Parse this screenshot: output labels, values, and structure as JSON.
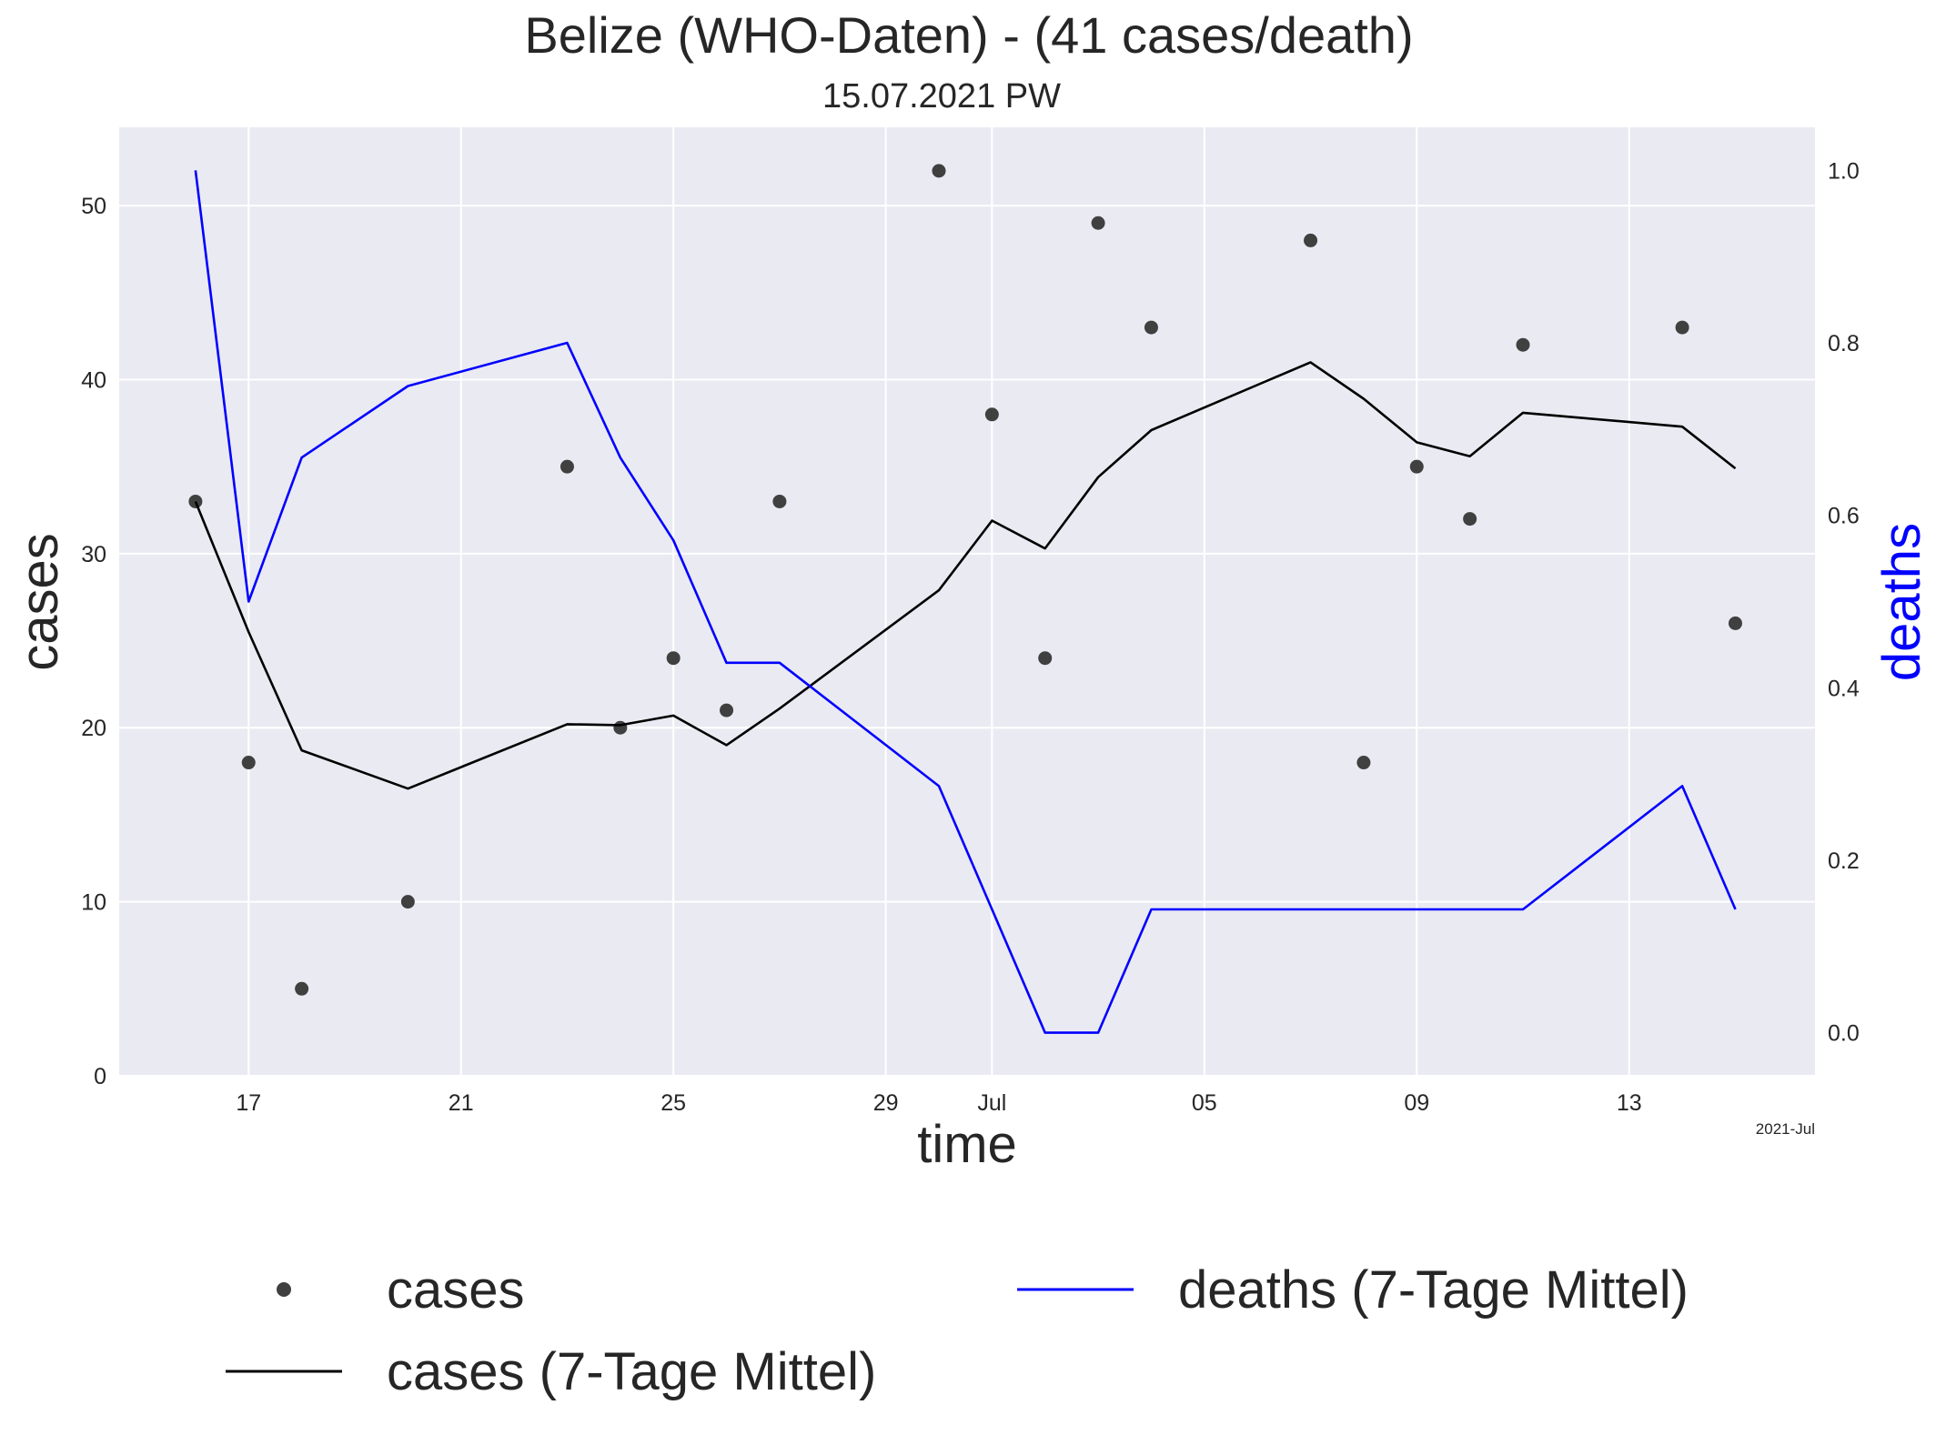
{
  "chart_data": {
    "type": "line",
    "title": "Belize (WHO-Daten) - (41 cases/death)",
    "subtitle": "15.07.2021 PW",
    "xlabel": "time",
    "ylabel_left": "cases",
    "ylabel_right": "deaths",
    "x_offset_label": "2021-Jul",
    "x_ticks": [
      {
        "date": "2021-06-17",
        "label": "17"
      },
      {
        "date": "2021-06-21",
        "label": "21"
      },
      {
        "date": "2021-06-25",
        "label": "25"
      },
      {
        "date": "2021-06-29",
        "label": "29"
      },
      {
        "date": "2021-07-01",
        "label": "Jul"
      },
      {
        "date": "2021-07-05",
        "label": "05"
      },
      {
        "date": "2021-07-09",
        "label": "09"
      },
      {
        "date": "2021-07-13",
        "label": "13"
      }
    ],
    "xlim": [
      "2021-06-14T13:30",
      "2021-07-16T12:00"
    ],
    "ylim_left": [
      0,
      54.5
    ],
    "ylim_right": [
      -0.05,
      1.05
    ],
    "y_ticks_left": [
      0,
      10,
      20,
      30,
      40,
      50
    ],
    "y_ticks_right": [
      0.0,
      0.2,
      0.4,
      0.6,
      0.8,
      1.0
    ],
    "grid": true,
    "legend_placement": "below",
    "legend": [
      {
        "label": "cases",
        "kind": "dot",
        "color": "#404040"
      },
      {
        "label": "cases (7-Tage Mittel)",
        "kind": "line",
        "color": "#000000"
      },
      {
        "label": "deaths (7-Tage Mittel)",
        "kind": "line",
        "color": "#0000ff"
      }
    ],
    "series": [
      {
        "name": "cases",
        "axis": "left",
        "style": "dots",
        "color": "#404040",
        "x": [
          "2021-06-16",
          "2021-06-17",
          "2021-06-18",
          "2021-06-20",
          "2021-06-23",
          "2021-06-24",
          "2021-06-25",
          "2021-06-26",
          "2021-06-27",
          "2021-06-30",
          "2021-07-01",
          "2021-07-02",
          "2021-07-03",
          "2021-07-04",
          "2021-07-07",
          "2021-07-08",
          "2021-07-09",
          "2021-07-10",
          "2021-07-11",
          "2021-07-14",
          "2021-07-15"
        ],
        "values": [
          33,
          18,
          5,
          10,
          35,
          20,
          24,
          21,
          33,
          52,
          38,
          24,
          49,
          43,
          48,
          18,
          35,
          32,
          42,
          43,
          26
        ]
      },
      {
        "name": "cases (7-Tage Mittel)",
        "axis": "left",
        "style": "line",
        "color": "#000000",
        "x": [
          "2021-06-16",
          "2021-06-17",
          "2021-06-18",
          "2021-06-20",
          "2021-06-23",
          "2021-06-24",
          "2021-06-25",
          "2021-06-26",
          "2021-06-27",
          "2021-06-30",
          "2021-07-01",
          "2021-07-02",
          "2021-07-03",
          "2021-07-04",
          "2021-07-07",
          "2021-07-08",
          "2021-07-09",
          "2021-07-10",
          "2021-07-11",
          "2021-07-14",
          "2021-07-15"
        ],
        "values": [
          33,
          25.5,
          18.7,
          16.5,
          20.2,
          20.15,
          20.7,
          19.0,
          21.1,
          27.9,
          31.9,
          30.3,
          34.4,
          37.1,
          41.0,
          38.9,
          36.4,
          35.6,
          38.1,
          37.3,
          34.9
        ]
      },
      {
        "name": "deaths (7-Tage Mittel)",
        "axis": "right",
        "style": "line",
        "color": "#0000ff",
        "x": [
          "2021-06-16",
          "2021-06-17",
          "2021-06-18",
          "2021-06-20",
          "2021-06-23",
          "2021-06-24",
          "2021-06-25",
          "2021-06-26",
          "2021-06-27",
          "2021-06-30",
          "2021-07-01",
          "2021-07-02",
          "2021-07-03",
          "2021-07-04",
          "2021-07-07",
          "2021-07-08",
          "2021-07-09",
          "2021-07-10",
          "2021-07-11",
          "2021-07-14",
          "2021-07-15"
        ],
        "values": [
          1.0,
          0.5,
          0.667,
          0.75,
          0.8,
          0.667,
          0.571,
          0.429,
          0.429,
          0.286,
          0.143,
          0.0,
          0.0,
          0.143,
          0.143,
          0.143,
          0.143,
          0.143,
          0.143,
          0.286,
          0.143
        ]
      }
    ]
  }
}
